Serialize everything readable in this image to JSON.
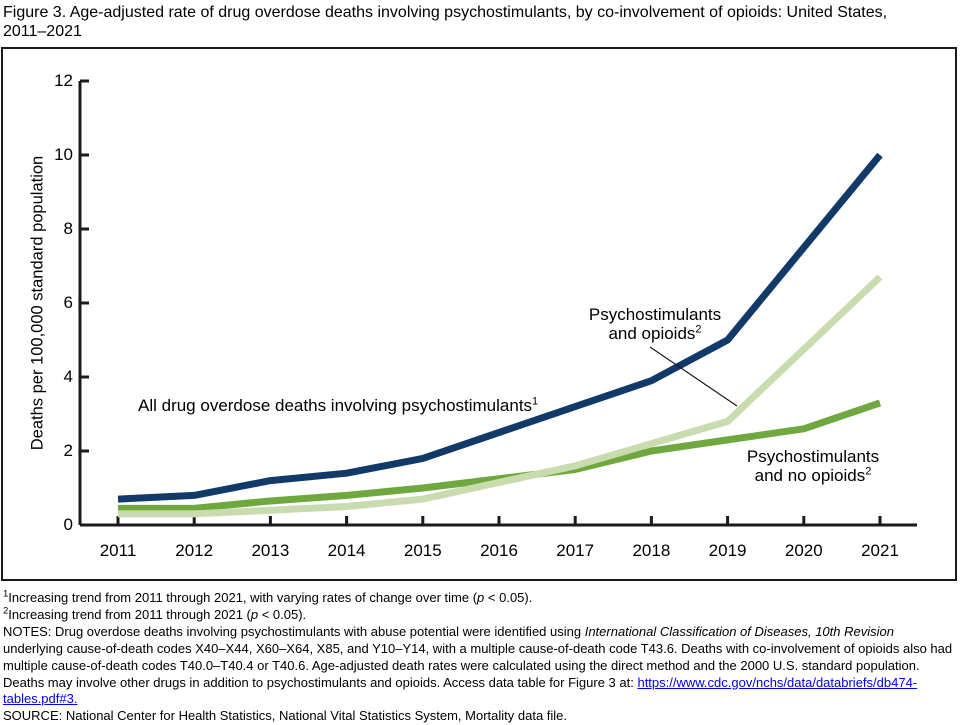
{
  "title": {
    "line1": "Figure 3. Age-adjusted rate of drug overdose deaths involving psychostimulants, by co-involvement of opioids: United States,",
    "line2": "2011–2021"
  },
  "chart_data": {
    "type": "line",
    "title": "Age-adjusted rate of drug overdose deaths involving psychostimulants, by co-involvement of opioids: United States, 2011–2021",
    "ylabel": "Deaths per 100,000 standard population",
    "xlabel": "",
    "ylim": [
      0,
      12
    ],
    "y_ticks": [
      0,
      2,
      4,
      6,
      8,
      10,
      12
    ],
    "grid": false,
    "legend": "inline-annotations",
    "x": [
      2011,
      2012,
      2013,
      2014,
      2015,
      2016,
      2017,
      2018,
      2019,
      2020,
      2021
    ],
    "series": [
      {
        "name": "All drug overdose deaths involving psychostimulants",
        "color": "#123a68",
        "values": [
          0.7,
          0.8,
          1.2,
          1.4,
          1.8,
          2.5,
          3.2,
          3.9,
          5.0,
          7.5,
          10.0
        ]
      },
      {
        "name": "Psychostimulants and opioids",
        "color": "#c9dcb0",
        "values": [
          0.3,
          0.3,
          0.4,
          0.5,
          0.7,
          1.15,
          1.6,
          2.2,
          2.8,
          4.75,
          6.7
        ]
      },
      {
        "name": "Psychostimulants and no opioids",
        "color": "#6fa83f",
        "values": [
          0.45,
          0.45,
          0.65,
          0.8,
          1.0,
          1.25,
          1.5,
          2.0,
          2.3,
          2.6,
          3.3
        ]
      }
    ]
  },
  "annotations": {
    "all_label": {
      "text": "All drug overdose deaths involving psychostimulants",
      "sup": "1"
    },
    "opioids_label": {
      "line1": "Psychostimulants",
      "line2": "and opioids",
      "sup": "2"
    },
    "no_opioids_label": {
      "line1": "Psychostimulants",
      "line2": "and no opioids",
      "sup": "2"
    }
  },
  "footnotes": {
    "fn1": {
      "sup": "1",
      "pre": "Increasing trend from 2011 through 2021, with varying rates of change over time (",
      "italic": "p",
      "post": " < 0.05)."
    },
    "fn2": {
      "sup": "2",
      "pre": "Increasing trend from 2011 through 2021 (",
      "italic": "p",
      "post": " < 0.05)."
    },
    "notes": {
      "pre": "NOTES: Drug overdose deaths involving psychostimulants with abuse potential were identified using ",
      "italic": "International Classification of Diseases, 10th Revision",
      "mid": " underlying cause-of-death codes X40–X44, X60–X64, X85, and Y10–Y14, with a multiple cause-of-death code T43.6. Deaths with co-involvement of opioids also had multiple cause-of-death codes T40.0–T40.4 or T40.6. Age-adjusted death rates were calculated using the direct method and the 2000 U.S. standard population. Deaths may involve other drugs in addition to psychostimulants and opioids. Access data table for Figure 3 at: ",
      "link": "https://www.cdc.gov/nchs/data/databriefs/db474-tables.pdf#3.",
      "post": ""
    },
    "source": "SOURCE: National Center for Health Statistics, National Vital Statistics System, Mortality data file.",
    "link_color": "#0000ee"
  }
}
